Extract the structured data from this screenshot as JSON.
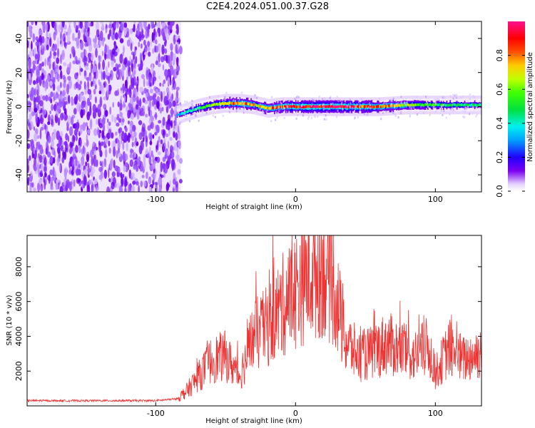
{
  "title": "C2E4.2024.051.00.37.G28",
  "chart_data": [
    {
      "type": "heatmap",
      "xlabel": "Height of straight line (km)",
      "ylabel": "Frequency (Hz)",
      "xlim": [
        -192,
        133
      ],
      "ylim": [
        -50,
        50
      ],
      "xticks": [
        -100,
        0,
        100
      ],
      "yticks": [
        -40,
        -20,
        0,
        20,
        40
      ],
      "colorbar": {
        "label": "Normalized spectral amplitude",
        "range": [
          0,
          1
        ],
        "ticks": [
          "0.0",
          "0.2",
          "0.4",
          "0.6",
          "0.8"
        ],
        "colormap": "gist_ncar-like (white → violet → blue → cyan → green → yellow → orange → red → magenta)"
      },
      "noise_region_x": [
        -192,
        -82
      ],
      "signal_track": [
        {
          "x": -85,
          "freq": -5,
          "amp": 0.3
        },
        {
          "x": -78,
          "freq": -3,
          "amp": 0.5
        },
        {
          "x": -70,
          "freq": -1,
          "amp": 0.55
        },
        {
          "x": -60,
          "freq": 1,
          "amp": 0.6
        },
        {
          "x": -50,
          "freq": 2,
          "amp": 0.75
        },
        {
          "x": -40,
          "freq": 2,
          "amp": 0.85
        },
        {
          "x": -30,
          "freq": 1,
          "amp": 0.75
        },
        {
          "x": -20,
          "freq": -1,
          "amp": 0.8
        },
        {
          "x": -10,
          "freq": 0,
          "amp": 0.85
        },
        {
          "x": 0,
          "freq": 0,
          "amp": 0.95
        },
        {
          "x": 20,
          "freq": 0,
          "amp": 1.0
        },
        {
          "x": 40,
          "freq": 0,
          "amp": 0.95
        },
        {
          "x": 60,
          "freq": 0,
          "amp": 0.85
        },
        {
          "x": 80,
          "freq": 1,
          "amp": 0.7
        },
        {
          "x": 100,
          "freq": 1,
          "amp": 0.55
        },
        {
          "x": 120,
          "freq": 1,
          "amp": 0.5
        },
        {
          "x": 133,
          "freq": 1,
          "amp": 0.5
        }
      ]
    },
    {
      "type": "line",
      "xlabel": "Height of straight line (km)",
      "ylabel": "SNR (10 * v/v)",
      "xlim": [
        -192,
        133
      ],
      "ylim": [
        0,
        9800
      ],
      "xticks": [
        -100,
        0,
        100
      ],
      "yticks": [
        2000,
        4000,
        6000,
        8000
      ],
      "color": "#ee3333",
      "x": [
        -192,
        -160,
        -120,
        -100,
        -85,
        -78,
        -70,
        -60,
        -50,
        -40,
        -30,
        -20,
        -10,
        0,
        10,
        20,
        28,
        35,
        45,
        55,
        65,
        75,
        85,
        95,
        100,
        110,
        120,
        133
      ],
      "y": [
        300,
        300,
        300,
        300,
        400,
        900,
        1700,
        2800,
        3000,
        1800,
        4200,
        4800,
        6000,
        7000,
        8000,
        8500,
        7200,
        4000,
        3000,
        3200,
        3800,
        3400,
        3000,
        3600,
        2000,
        3500,
        2800,
        3300
      ]
    }
  ]
}
